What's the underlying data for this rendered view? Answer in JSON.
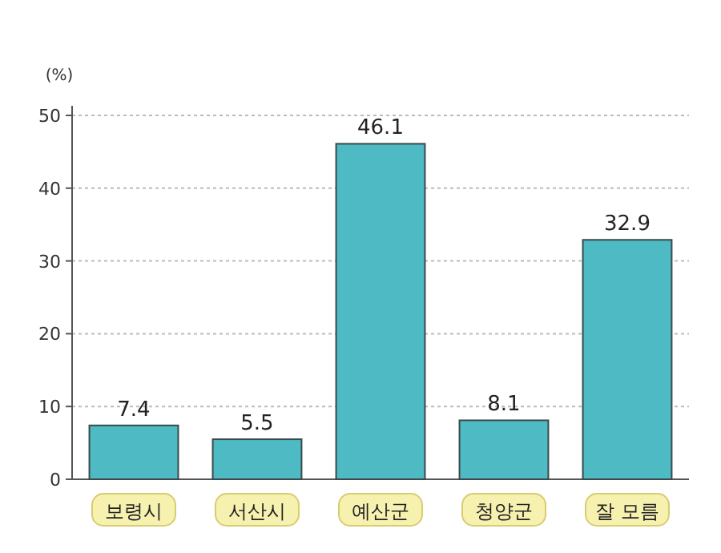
{
  "chart_data": {
    "type": "bar",
    "ylabel": "(%)",
    "categories": [
      "보령시",
      "서산시",
      "예산군",
      "청양군",
      "잘 모름"
    ],
    "values": [
      7.4,
      5.5,
      46.1,
      8.1,
      32.9
    ],
    "color": "#4dbac4",
    "ylim": [
      0,
      50
    ],
    "yticks": [
      0,
      10,
      20,
      30,
      40,
      50
    ],
    "grid": "y",
    "data_labels": true
  }
}
